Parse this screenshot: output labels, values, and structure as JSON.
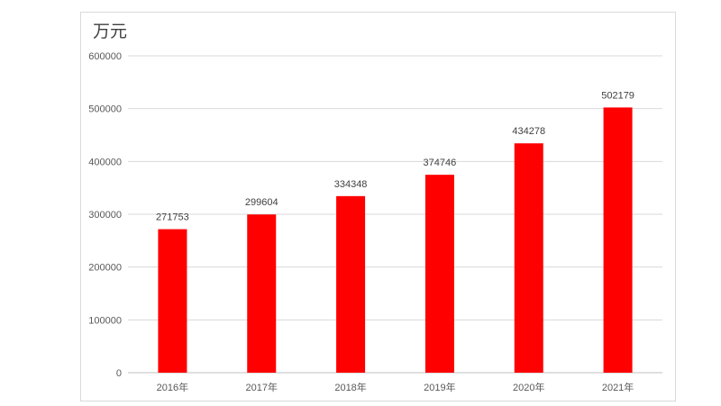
{
  "chart_data": {
    "type": "bar",
    "ylabel": "万元",
    "categories": [
      "2016年",
      "2017年",
      "2018年",
      "2019年",
      "2020年",
      "2021年"
    ],
    "values": [
      271753,
      299604,
      334348,
      374746,
      434278,
      502179
    ],
    "data_labels": [
      "271753",
      "299604",
      "334348",
      "374746",
      "434278",
      "502179"
    ],
    "ylim": [
      0,
      600000
    ],
    "yticks": [
      "0",
      "100000",
      "200000",
      "300000",
      "400000",
      "500000",
      "600000"
    ],
    "grid": true,
    "legend": "none",
    "bar_color": "#ff0000"
  }
}
